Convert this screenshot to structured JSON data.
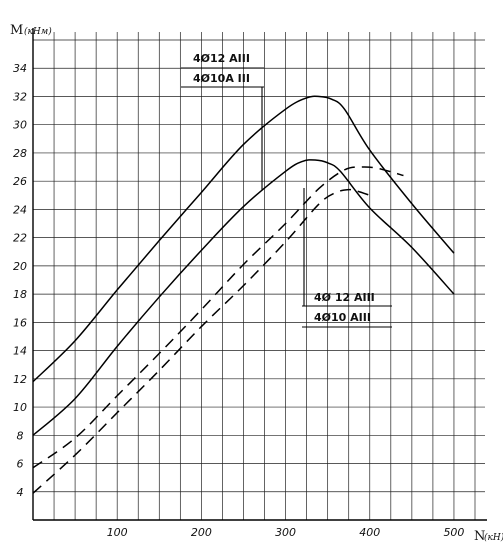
{
  "chart_data": {
    "type": "line",
    "title": "",
    "ylabel": "M",
    "ylabel_unit": "(кНм)",
    "xlabel": "N",
    "xlabel_unit": "(кН)",
    "xlim": [
      0,
      525
    ],
    "ylim": [
      2,
      36
    ],
    "grid": true,
    "x_ticks": [
      100,
      200,
      300,
      400,
      500
    ],
    "y_ticks": [
      4,
      6,
      8,
      10,
      12,
      14,
      16,
      18,
      20,
      22,
      24,
      26,
      28,
      30,
      32,
      34
    ],
    "x_tick_labels": [
      "100",
      "200",
      "300",
      "400",
      "500"
    ],
    "y_tick_labels": [
      "4",
      "6",
      "8",
      "10",
      "12",
      "14",
      "16",
      "18",
      "20",
      "22",
      "24",
      "26",
      "28",
      "30",
      "32",
      "34"
    ],
    "legend_solid": {
      "top": "4Ø12 AIII",
      "bottom": "4Ø10A III"
    },
    "legend_dashed": {
      "top": "4Ø 12 AIII",
      "bottom": "4Ø10 AIII"
    },
    "series": [
      {
        "style": "solid",
        "x": [
          0,
          50,
          100,
          150,
          200,
          250,
          300,
          325,
          340,
          355,
          370,
          400,
          450,
          500
        ],
        "y": [
          11.8,
          14.7,
          18.3,
          21.8,
          25.2,
          28.6,
          31.1,
          31.9,
          32.0,
          31.8,
          31.1,
          28.2,
          24.4,
          20.9
        ]
      },
      {
        "style": "solid",
        "x": [
          0,
          50,
          100,
          150,
          200,
          250,
          300,
          320,
          335,
          350,
          365,
          400,
          450,
          500
        ],
        "y": [
          8.0,
          10.6,
          14.3,
          17.8,
          21.1,
          24.2,
          26.7,
          27.4,
          27.5,
          27.3,
          26.7,
          24.1,
          21.3,
          18.0
        ]
      },
      {
        "style": "dashed",
        "x": [
          0,
          50,
          100,
          150,
          200,
          250,
          300,
          340,
          370,
          390,
          410,
          440
        ],
        "y": [
          5.7,
          7.8,
          10.8,
          13.8,
          16.9,
          20.1,
          23.0,
          25.5,
          26.8,
          27.0,
          26.9,
          26.4
        ]
      },
      {
        "style": "dashed",
        "x": [
          0,
          50,
          100,
          150,
          200,
          250,
          300,
          340,
          360,
          375,
          385,
          400
        ],
        "y": [
          3.9,
          6.6,
          9.6,
          12.6,
          15.7,
          18.6,
          21.7,
          24.4,
          25.2,
          25.4,
          25.3,
          25.0
        ]
      }
    ]
  }
}
